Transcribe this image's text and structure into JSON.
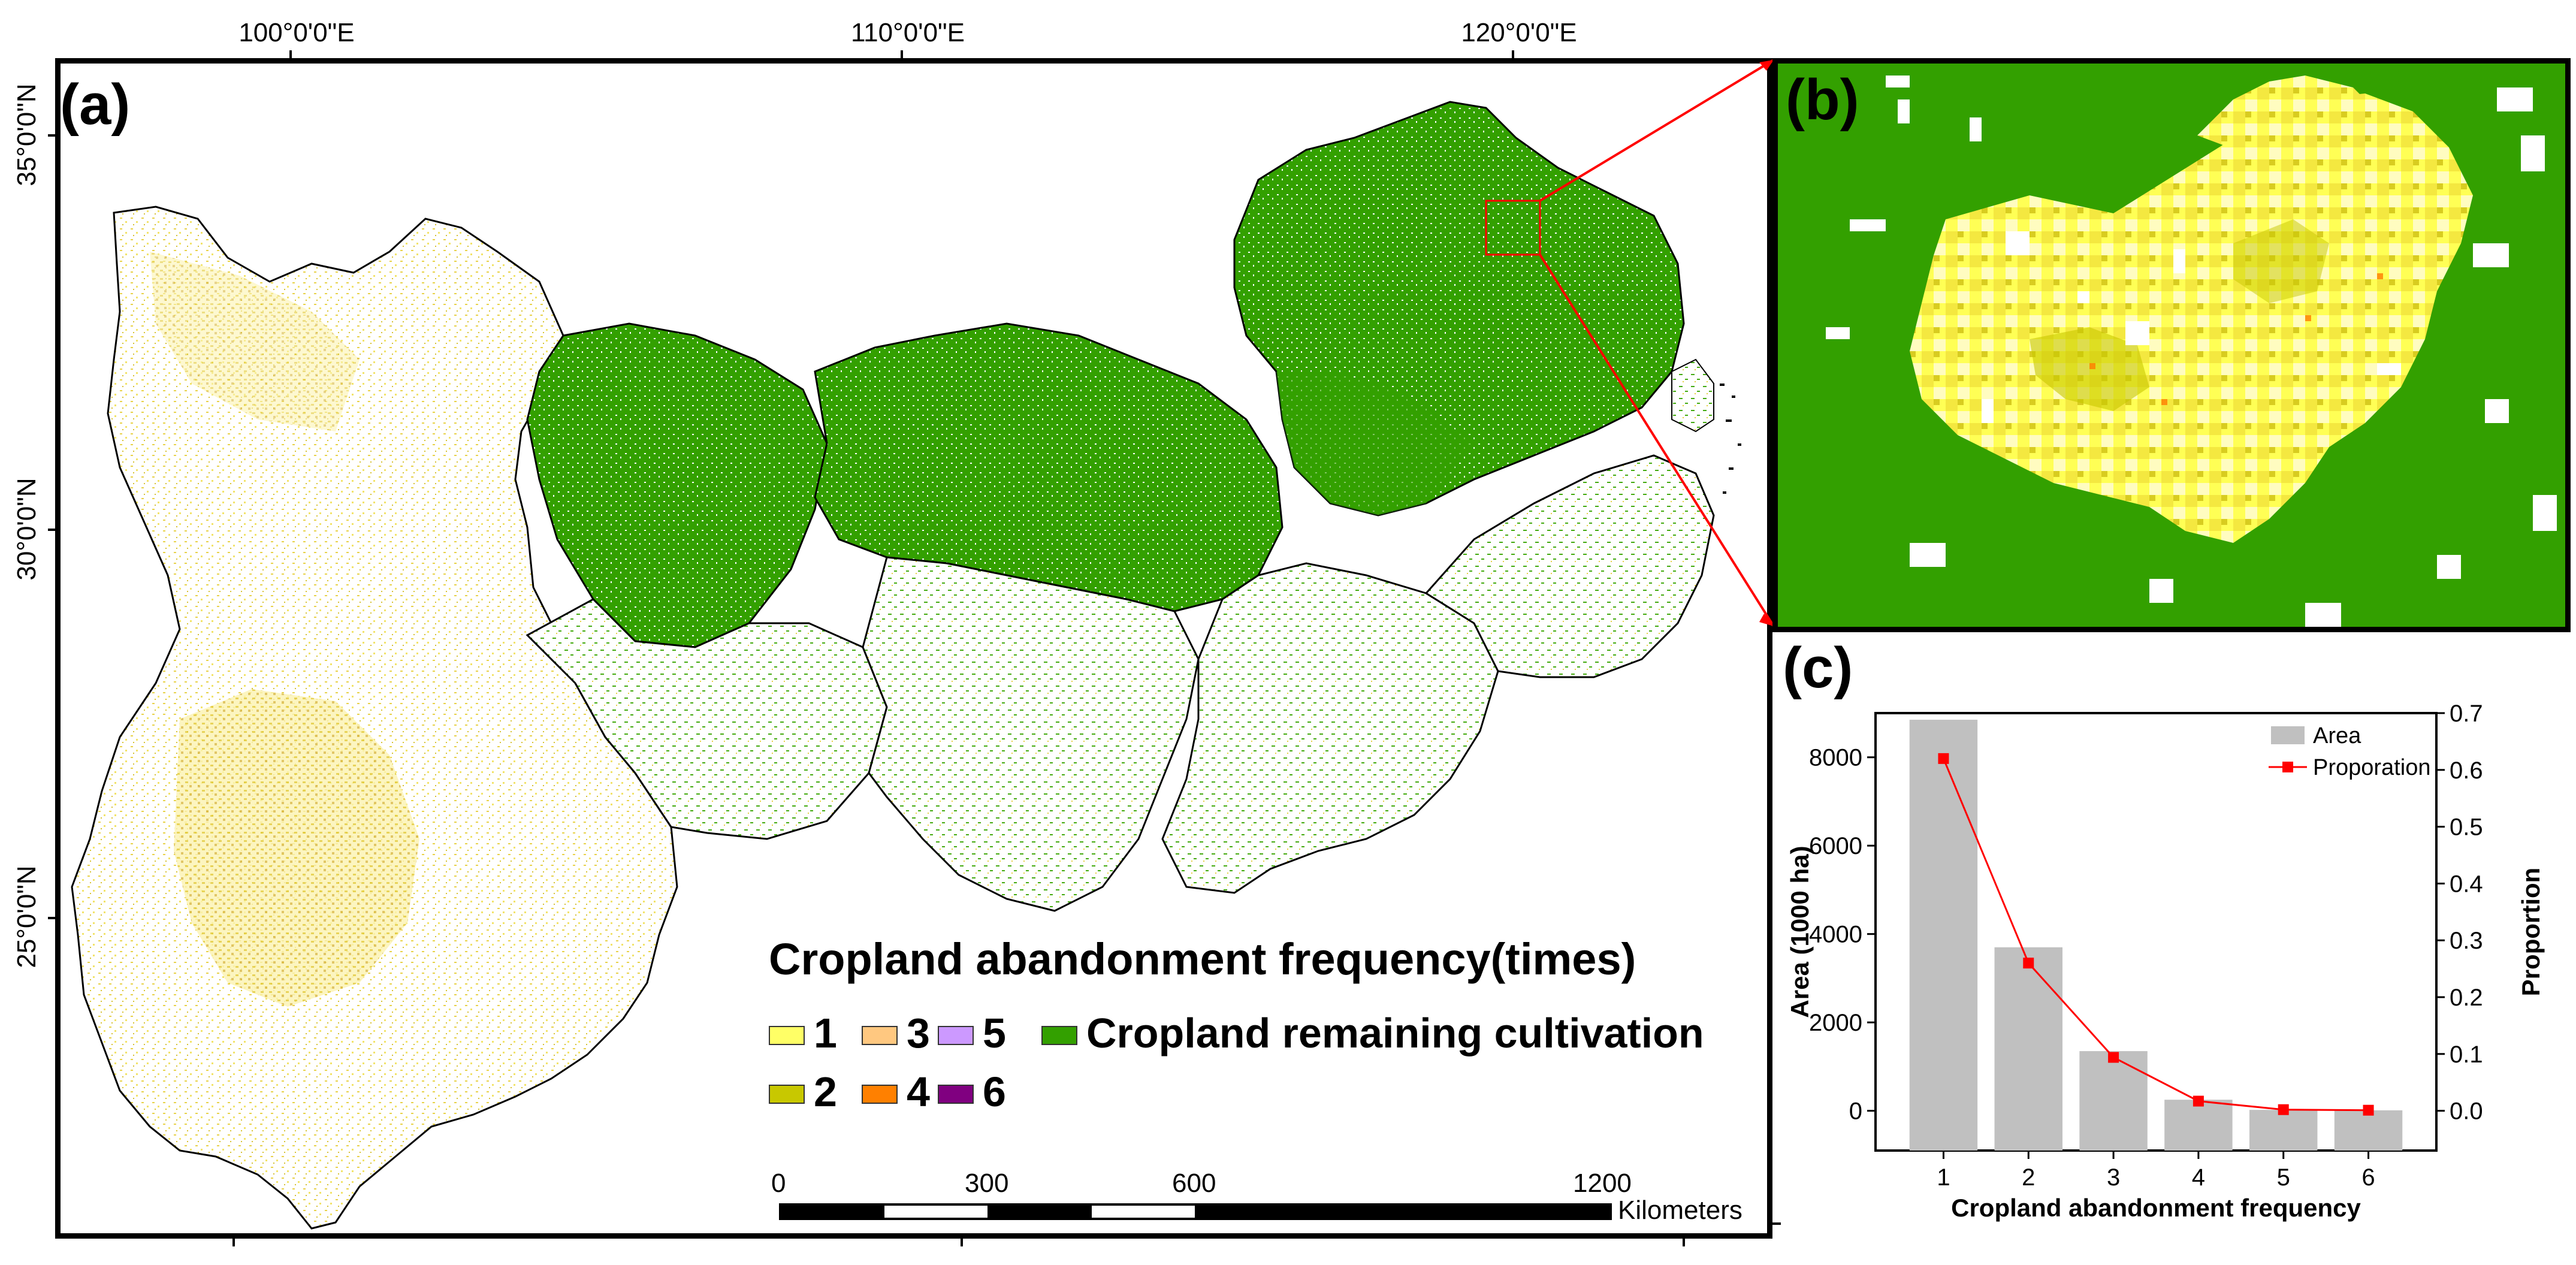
{
  "map": {
    "longitude_labels": [
      "100°0'0\"E",
      "110°0'0\"E",
      "120°0'0\"E"
    ],
    "latitude_labels": [
      "35°0'0\"N",
      "30°0'0\"N",
      "25°0'0\"N"
    ],
    "panel_a_letter": "(a)",
    "panel_b_letter": "(b)",
    "panel_c_letter": "(c)"
  },
  "legend": {
    "title": "Cropland abandonment frequency(times)",
    "items": [
      {
        "label": "1",
        "color": "#ffff66"
      },
      {
        "label": "2",
        "color": "#c8c800"
      },
      {
        "label": "3",
        "color": "#ffc880"
      },
      {
        "label": "4",
        "color": "#ff8000"
      },
      {
        "label": "5",
        "color": "#cc99ff"
      },
      {
        "label": "6",
        "color": "#800080"
      }
    ],
    "remaining_label": "Cropland remaining cultivation",
    "remaining_color": "#33a000"
  },
  "scalebar": {
    "ticks": [
      "0",
      "300",
      "600",
      "1200"
    ],
    "unit": "Kilometers"
  },
  "chart_data": {
    "type": "bar",
    "categories": [
      "1",
      "2",
      "3",
      "4",
      "5",
      "6"
    ],
    "series": [
      {
        "name": "Area",
        "axis": "left",
        "values": [
          8850,
          3700,
          1350,
          250,
          20,
          10
        ]
      },
      {
        "name": "Proporation",
        "axis": "right",
        "type": "line",
        "values": [
          0.62,
          0.26,
          0.094,
          0.017,
          0.002,
          0.001
        ]
      }
    ],
    "xlabel": "Cropland abandonment frequency",
    "ylabel": "Area (1000 ha)",
    "y2label": "Proportion",
    "ylim": [
      -900,
      9000
    ],
    "y2lim": [
      -0.07,
      0.7
    ],
    "yticks": [
      "0",
      "2000",
      "4000",
      "6000",
      "8000"
    ],
    "y2ticks": [
      "0.0",
      "0.1",
      "0.2",
      "0.3",
      "0.4",
      "0.5",
      "0.6",
      "0.7"
    ],
    "legend": [
      "Area",
      "Proporation"
    ],
    "colors": {
      "bar": "#c0c0c0",
      "line": "#ff0000"
    }
  }
}
